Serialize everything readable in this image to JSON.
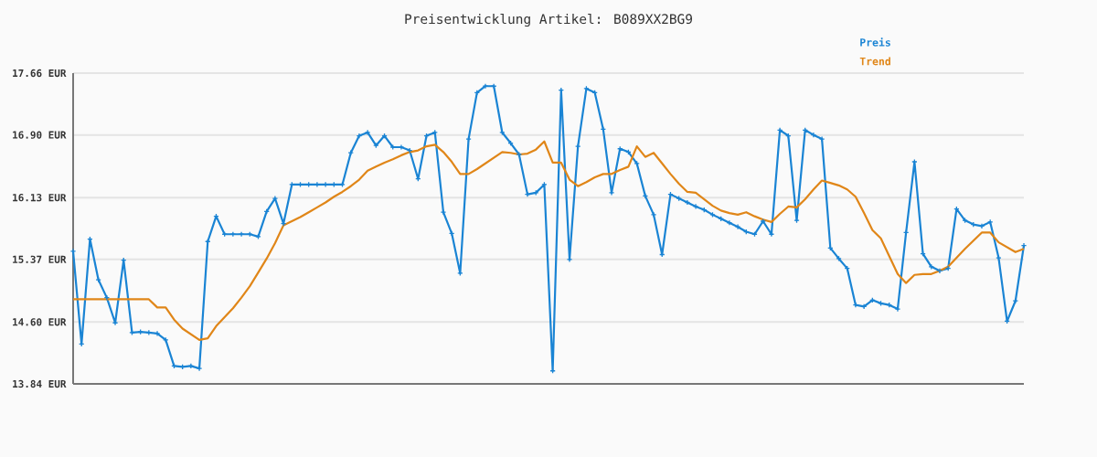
{
  "chart_data": {
    "type": "line",
    "title": "Preisentwicklung Artikel: B089XX2BG9",
    "categories": [
      null,
      null,
      null,
      null,
      null,
      null,
      null,
      null,
      null,
      null,
      null,
      null,
      null,
      null,
      null,
      null,
      null,
      null,
      null,
      null,
      null,
      null,
      null,
      null,
      null,
      null,
      null,
      null,
      null,
      null,
      null,
      null,
      null,
      null,
      null,
      null,
      null,
      null,
      null,
      null,
      null,
      null,
      null,
      null,
      null,
      null,
      null,
      null,
      null,
      null,
      null,
      null,
      null,
      null,
      null,
      null,
      null,
      null,
      null,
      null,
      null,
      null,
      null,
      null,
      null,
      null,
      null,
      null,
      null,
      null,
      null,
      null,
      null,
      null,
      null,
      null,
      null,
      null,
      null,
      null,
      null,
      null,
      null,
      null,
      null,
      null,
      null,
      null,
      null,
      null,
      null,
      null,
      null,
      null,
      null,
      null,
      null,
      null,
      null,
      null,
      null,
      null,
      null,
      null,
      null,
      null,
      null,
      null,
      null,
      null,
      null,
      null,
      null,
      null
    ],
    "series": [
      {
        "name": "Preis",
        "color": "#1a84d4",
        "marker": "cross",
        "values": [
          15.47,
          14.33,
          15.62,
          15.12,
          14.9,
          14.59,
          15.36,
          14.47,
          14.48,
          14.47,
          14.46,
          14.38,
          14.06,
          14.05,
          14.06,
          14.03,
          15.59,
          15.9,
          15.68,
          15.68,
          15.68,
          15.68,
          15.65,
          15.96,
          16.12,
          15.81,
          16.29,
          16.29,
          16.29,
          16.29,
          16.29,
          16.29,
          16.29,
          16.68,
          16.89,
          16.93,
          16.77,
          16.89,
          16.75,
          16.75,
          16.71,
          16.36,
          16.89,
          16.93,
          15.95,
          15.69,
          15.2,
          16.85,
          17.42,
          17.5,
          17.5,
          16.93,
          16.8,
          16.66,
          16.17,
          16.19,
          16.29,
          14.0,
          17.45,
          15.37,
          16.76,
          17.47,
          17.42,
          16.97,
          16.19,
          16.73,
          16.69,
          16.55,
          16.15,
          15.92,
          15.43,
          16.17,
          16.12,
          16.07,
          16.02,
          15.98,
          15.92,
          15.87,
          15.82,
          15.77,
          15.71,
          15.68,
          15.84,
          15.68,
          16.96,
          16.89,
          15.85,
          16.96,
          16.9,
          16.85,
          15.51,
          15.38,
          15.26,
          14.81,
          14.79,
          14.87,
          14.83,
          14.81,
          14.76,
          15.7,
          16.57,
          15.44,
          15.28,
          15.23,
          15.26,
          15.99,
          15.85,
          15.8,
          15.78,
          15.83,
          15.39,
          14.61,
          14.86,
          15.54
        ]
      },
      {
        "name": "Trend",
        "color": "#e08618",
        "marker": "none",
        "values": [
          14.88,
          14.88,
          14.88,
          14.88,
          14.88,
          14.88,
          14.88,
          14.88,
          14.88,
          14.88,
          14.78,
          14.78,
          14.63,
          14.52,
          14.45,
          14.38,
          14.4,
          14.55,
          14.66,
          14.77,
          14.9,
          15.04,
          15.21,
          15.38,
          15.57,
          15.79,
          15.84,
          15.89,
          15.95,
          16.01,
          16.07,
          16.14,
          16.2,
          16.27,
          16.35,
          16.46,
          16.51,
          16.56,
          16.6,
          16.65,
          16.69,
          16.71,
          16.76,
          16.78,
          16.69,
          16.57,
          16.42,
          16.42,
          16.48,
          16.55,
          16.62,
          16.69,
          16.68,
          16.66,
          16.67,
          16.72,
          16.82,
          16.56,
          16.56,
          16.35,
          16.27,
          16.32,
          16.38,
          16.42,
          16.42,
          16.47,
          16.51,
          16.76,
          16.63,
          16.68,
          16.55,
          16.42,
          16.3,
          16.2,
          16.19,
          16.11,
          16.03,
          15.97,
          15.94,
          15.92,
          15.95,
          15.9,
          15.86,
          15.83,
          15.93,
          16.02,
          16.01,
          16.11,
          16.23,
          16.34,
          16.31,
          16.28,
          16.23,
          16.14,
          15.94,
          15.73,
          15.63,
          15.41,
          15.19,
          15.08,
          15.18,
          15.19,
          15.19,
          15.23,
          15.28,
          15.39,
          15.5,
          15.6,
          15.7,
          15.7,
          15.58,
          15.52,
          15.46,
          15.5
        ]
      }
    ],
    "ylim": [
      13.84,
      17.66
    ],
    "yticks": [
      {
        "value": 13.84,
        "label": "13.84 EUR"
      },
      {
        "value": 14.6,
        "label": "14.60 EUR"
      },
      {
        "value": 15.37,
        "label": "15.37 EUR"
      },
      {
        "value": 16.13,
        "label": "16.13 EUR"
      },
      {
        "value": 16.9,
        "label": "16.90 EUR"
      },
      {
        "value": 17.66,
        "label": "17.66 EUR"
      }
    ],
    "grid": "y",
    "legend": "top right",
    "tick_labels": "y",
    "line_style": "solid"
  }
}
